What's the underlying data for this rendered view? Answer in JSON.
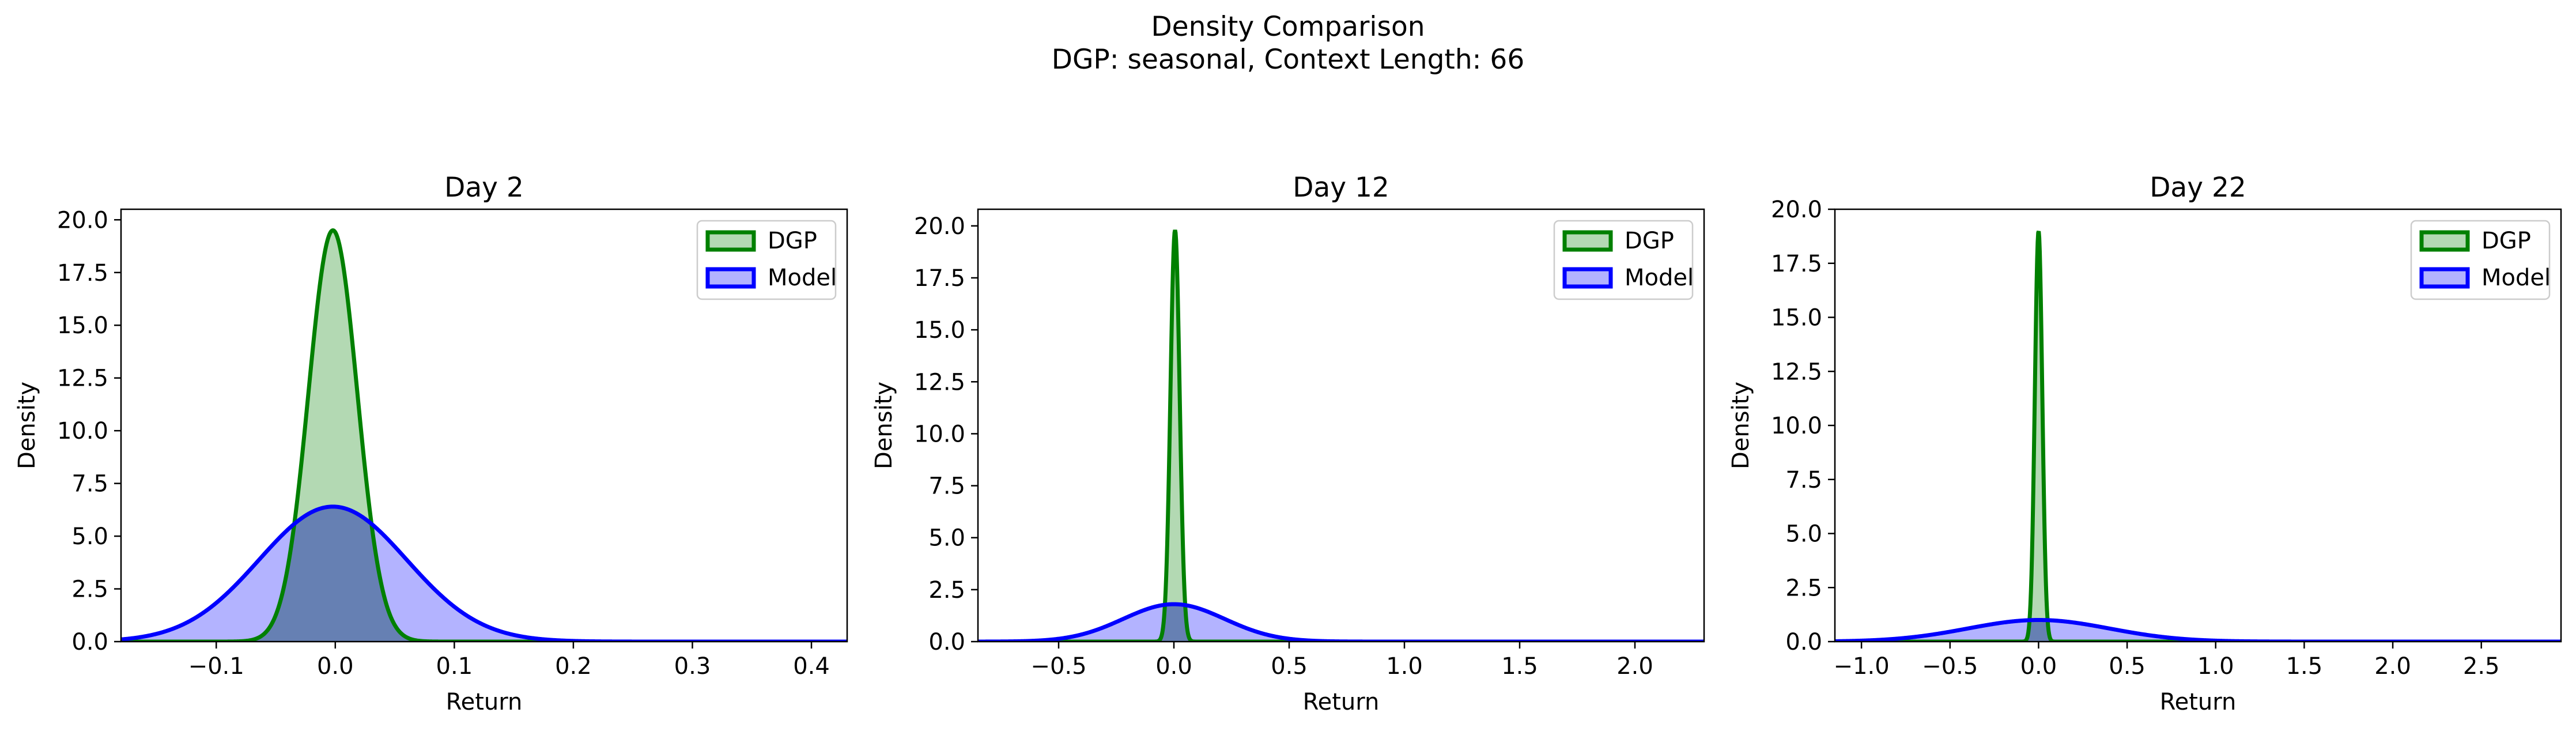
{
  "suptitle": {
    "line1": "Density Comparison",
    "line2": "DGP: seasonal, Context Length: 66"
  },
  "colors": {
    "dgp_line": "#008000",
    "dgp_fill": "#b3d9b3",
    "model_line": "#0000ff",
    "model_fill": "#b3b3ff",
    "overlap_fill": "#6680b3"
  },
  "chart_data": [
    {
      "type": "area",
      "title": "Day 2",
      "xlabel": "Return",
      "ylabel": "Density",
      "xlim": [
        -0.18,
        0.43
      ],
      "ylim": [
        0,
        20.5
      ],
      "xticks": [
        -0.1,
        0.0,
        0.1,
        0.2,
        0.3,
        0.4
      ],
      "xtick_labels": [
        "−0.1",
        "0.0",
        "0.1",
        "0.2",
        "0.3",
        "0.4"
      ],
      "yticks": [
        0.0,
        2.5,
        5.0,
        7.5,
        10.0,
        12.5,
        15.0,
        17.5,
        20.0
      ],
      "ytick_labels": [
        "0.0",
        "2.5",
        "5.0",
        "7.5",
        "10.0",
        "12.5",
        "15.0",
        "17.5",
        "20.0"
      ],
      "legend": "top-right",
      "series": [
        {
          "name": "DGP",
          "distribution": "normal",
          "mean": -0.002,
          "sd": 0.0205,
          "peak": 19.5
        },
        {
          "name": "Model",
          "distribution": "normal",
          "mean": -0.002,
          "sd": 0.062,
          "peak": 6.4
        }
      ]
    },
    {
      "type": "area",
      "title": "Day 12",
      "xlabel": "Return",
      "ylabel": "Density",
      "xlim": [
        -0.85,
        2.3
      ],
      "ylim": [
        0,
        20.8
      ],
      "xticks": [
        -0.5,
        0.0,
        0.5,
        1.0,
        1.5,
        2.0
      ],
      "xtick_labels": [
        "−0.5",
        "0.0",
        "0.5",
        "1.0",
        "1.5",
        "2.0"
      ],
      "yticks": [
        0.0,
        2.5,
        5.0,
        7.5,
        10.0,
        12.5,
        15.0,
        17.5,
        20.0
      ],
      "ytick_labels": [
        "0.0",
        "2.5",
        "5.0",
        "7.5",
        "10.0",
        "12.5",
        "15.0",
        "17.5",
        "20.0"
      ],
      "legend": "top-right",
      "series": [
        {
          "name": "DGP",
          "distribution": "normal",
          "mean": 0.005,
          "sd": 0.02,
          "peak": 19.8
        },
        {
          "name": "Model",
          "distribution": "normal",
          "mean": 0.0,
          "sd": 0.22,
          "peak": 1.8
        }
      ]
    },
    {
      "type": "area",
      "title": "Day 22",
      "xlabel": "Return",
      "ylabel": "Density",
      "xlim": [
        -1.15,
        2.95
      ],
      "ylim": [
        0,
        20.0
      ],
      "xticks": [
        -1.0,
        -0.5,
        0.0,
        0.5,
        1.0,
        1.5,
        2.0,
        2.5
      ],
      "xtick_labels": [
        "−1.0",
        "−0.5",
        "0.0",
        "0.5",
        "1.0",
        "1.5",
        "2.0",
        "2.5"
      ],
      "yticks": [
        0.0,
        2.5,
        5.0,
        7.5,
        10.0,
        12.5,
        15.0,
        17.5,
        20.0
      ],
      "ytick_labels": [
        "0.0",
        "2.5",
        "5.0",
        "7.5",
        "10.0",
        "12.5",
        "15.0",
        "17.5",
        "20.0"
      ],
      "legend": "top-right",
      "series": [
        {
          "name": "DGP",
          "distribution": "normal",
          "mean": 0.0,
          "sd": 0.021,
          "peak": 19.0
        },
        {
          "name": "Model",
          "distribution": "normal",
          "mean": 0.0,
          "sd": 0.4,
          "peak": 1.0
        }
      ]
    }
  ]
}
